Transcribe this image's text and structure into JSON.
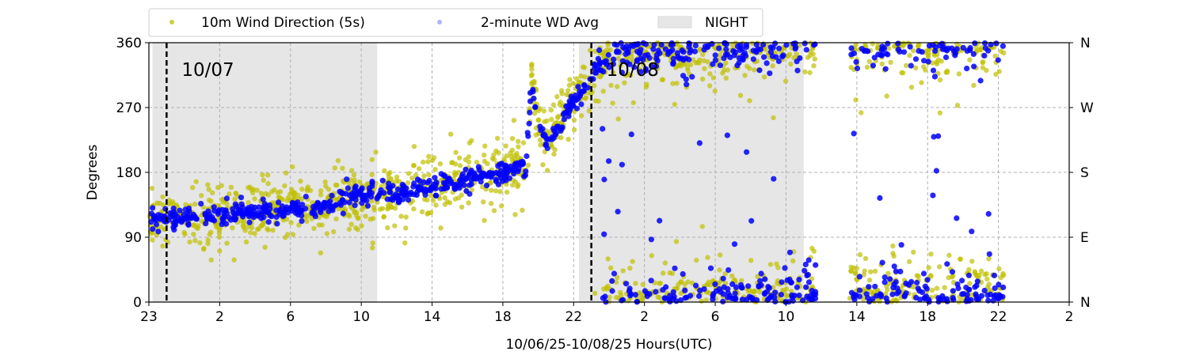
{
  "chart_data": {
    "type": "scatter",
    "title": "",
    "xlabel": "10/06/25-10/08/25  Hours(UTC)",
    "ylabel": "Degrees",
    "x_units": "hours since axis start",
    "xlim": [
      0,
      52
    ],
    "ylim": [
      0,
      360
    ],
    "x_ticks": [
      0,
      4,
      8,
      12,
      16,
      20,
      24,
      28,
      32,
      36,
      40,
      44,
      48,
      52
    ],
    "x_tick_labels": [
      "23",
      "2",
      "6",
      "10",
      "14",
      "18",
      "22",
      "2",
      "6",
      "10",
      "14",
      "18",
      "22",
      "2"
    ],
    "y_ticks": [
      0,
      90,
      180,
      270,
      360
    ],
    "y_tick_labels": [
      "0",
      "90",
      "180",
      "270",
      "360"
    ],
    "y2_tick_labels": [
      "N",
      "E",
      "S",
      "W",
      "N"
    ],
    "grid": true,
    "legend": {
      "placement": "top-left-outside",
      "entries": [
        "10m Wind Direction (5s)",
        "2-minute WD Avg",
        "NIGHT"
      ]
    },
    "night_spans": [
      [
        0.2,
        12.9
      ],
      [
        24.3,
        37.0
      ]
    ],
    "day_markers": [
      {
        "x": 1.0,
        "label": "10/07"
      },
      {
        "x": 25.0,
        "label": "10/08"
      }
    ],
    "data_gaps": [
      [
        37.7,
        39.6
      ]
    ],
    "data_end": 48.3,
    "series": [
      {
        "name": "10m Wind Direction (5s)",
        "color": "#bfbf00",
        "spread_deg": 25,
        "trend": [
          [
            0,
            115
          ],
          [
            6,
            125
          ],
          [
            10,
            135
          ],
          [
            12,
            150
          ],
          [
            14,
            150
          ],
          [
            16,
            160
          ],
          [
            20,
            180
          ],
          [
            21.3,
            190
          ],
          [
            21.6,
            300
          ],
          [
            22,
            250
          ],
          [
            22.5,
            220
          ],
          [
            23.5,
            260
          ],
          [
            25,
            310
          ],
          [
            26,
            350
          ],
          [
            37.7,
            365
          ],
          [
            39.6,
            360
          ],
          [
            48.3,
            365
          ]
        ]
      },
      {
        "name": "2-minute WD Avg",
        "color": "#0000ff",
        "spread_deg": 8,
        "trend": [
          [
            0,
            115
          ],
          [
            6,
            125
          ],
          [
            10,
            135
          ],
          [
            12,
            150
          ],
          [
            14,
            150
          ],
          [
            16,
            160
          ],
          [
            20,
            180
          ],
          [
            21.3,
            190
          ],
          [
            21.6,
            300
          ],
          [
            22,
            250
          ],
          [
            22.5,
            220
          ],
          [
            23.5,
            260
          ],
          [
            25,
            310
          ],
          [
            26,
            350
          ],
          [
            37.7,
            365
          ],
          [
            39.6,
            360
          ],
          [
            48.3,
            365
          ]
        ]
      }
    ]
  }
}
